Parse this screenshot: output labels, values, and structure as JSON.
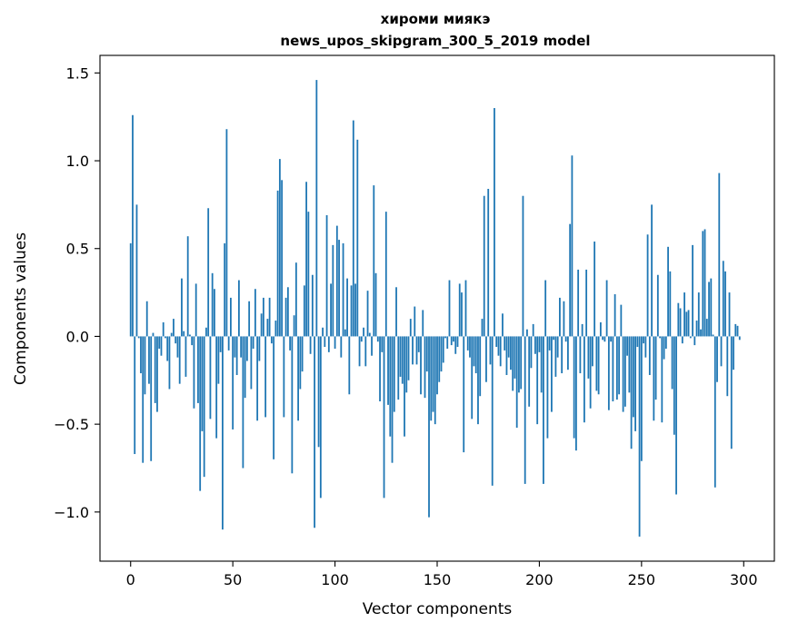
{
  "chart_data": {
    "type": "bar",
    "title": "хироми миякэ",
    "subtitle": "news_upos_skipgram_300_5_2019 model",
    "xlabel": "Vector components",
    "ylabel": "Components values",
    "xlim": [
      -15,
      315
    ],
    "ylim": [
      -1.28,
      1.6
    ],
    "xticks": [
      0,
      50,
      100,
      150,
      200,
      250,
      300
    ],
    "xtick_labels": [
      "0",
      "50",
      "100",
      "150",
      "200",
      "250",
      "300"
    ],
    "yticks": [
      -1.0,
      -0.5,
      0.0,
      0.5,
      1.0,
      1.5
    ],
    "ytick_labels": [
      "−1.0",
      "−0.5",
      "0.0",
      "0.5",
      "1.0",
      "1.5"
    ],
    "bar_color": "#1f77b4",
    "grid": false,
    "series": [
      {
        "values": [
          0.53,
          1.26,
          -0.67,
          0.75,
          -0.01,
          -0.21,
          -0.72,
          -0.33,
          0.2,
          -0.27,
          -0.71,
          0.02,
          -0.38,
          -0.43,
          -0.07,
          -0.11,
          0.08,
          -0.01,
          -0.14,
          -0.3,
          0.02,
          0.1,
          -0.04,
          -0.12,
          -0.27,
          0.33,
          0.03,
          -0.23,
          0.57,
          0.01,
          -0.05,
          -0.41,
          0.3,
          -0.38,
          -0.88,
          -0.54,
          -0.8,
          0.05,
          0.73,
          -0.47,
          0.36,
          0.27,
          -0.58,
          -0.27,
          -0.09,
          -1.1,
          0.53,
          1.18,
          -0.08,
          0.22,
          -0.53,
          -0.12,
          -0.22,
          0.32,
          -0.12,
          -0.75,
          -0.35,
          -0.14,
          0.2,
          -0.3,
          -0.07,
          0.27,
          -0.48,
          -0.14,
          0.13,
          0.22,
          -0.46,
          0.1,
          0.22,
          -0.04,
          -0.7,
          0.09,
          0.83,
          1.01,
          0.89,
          -0.46,
          0.22,
          0.28,
          -0.08,
          -0.78,
          0.12,
          0.42,
          -0.48,
          -0.3,
          -0.2,
          0.29,
          0.88,
          0.71,
          -0.1,
          0.35,
          -1.09,
          1.46,
          -0.63,
          -0.92,
          0.05,
          -0.06,
          0.69,
          -0.09,
          0.3,
          0.52,
          -0.07,
          0.63,
          0.55,
          -0.12,
          0.53,
          0.04,
          0.33,
          -0.33,
          0.29,
          1.23,
          0.3,
          1.12,
          -0.17,
          -0.03,
          0.05,
          -0.17,
          0.26,
          0.02,
          -0.11,
          0.86,
          0.36,
          -0.03,
          -0.37,
          -0.09,
          -0.92,
          0.71,
          -0.39,
          -0.57,
          -0.72,
          -0.43,
          0.28,
          -0.36,
          -0.23,
          -0.27,
          -0.57,
          -0.32,
          -0.25,
          0.1,
          -0.16,
          0.17,
          -0.16,
          -0.09,
          -0.33,
          0.15,
          -0.35,
          -0.2,
          -1.03,
          -0.48,
          -0.43,
          -0.5,
          -0.33,
          -0.26,
          -0.2,
          -0.15,
          -0.01,
          -0.07,
          0.32,
          -0.05,
          -0.03,
          -0.1,
          -0.06,
          0.3,
          0.25,
          -0.66,
          0.32,
          -0.08,
          -0.12,
          -0.47,
          -0.17,
          -0.21,
          -0.5,
          -0.34,
          0.1,
          0.8,
          -0.26,
          0.84,
          -0.16,
          -0.85,
          1.3,
          -0.06,
          -0.11,
          -0.17,
          0.13,
          -0.08,
          -0.22,
          -0.12,
          -0.19,
          -0.31,
          -0.24,
          -0.52,
          -0.32,
          -0.3,
          0.8,
          -0.84,
          0.04,
          -0.4,
          -0.18,
          0.07,
          -0.1,
          -0.5,
          -0.09,
          -0.32,
          -0.84,
          0.32,
          -0.58,
          -0.08,
          -0.43,
          -0.02,
          -0.23,
          -0.12,
          0.22,
          -0.21,
          0.2,
          -0.03,
          -0.19,
          0.64,
          1.03,
          -0.58,
          -0.65,
          0.38,
          -0.21,
          0.07,
          -0.49,
          0.38,
          -0.24,
          -0.41,
          -0.17,
          0.54,
          -0.31,
          -0.33,
          0.08,
          -0.02,
          -0.03,
          0.32,
          -0.42,
          -0.03,
          -0.37,
          0.24,
          -0.36,
          -0.33,
          0.18,
          -0.43,
          -0.4,
          -0.11,
          -0.32,
          -0.64,
          -0.46,
          -0.54,
          -0.06,
          -1.14,
          -0.71,
          -0.04,
          -0.12,
          0.58,
          -0.22,
          0.75,
          -0.48,
          -0.36,
          0.35,
          -0.01,
          -0.49,
          -0.13,
          -0.07,
          0.51,
          0.37,
          -0.3,
          -0.56,
          -0.9,
          0.19,
          0.16,
          -0.04,
          0.25,
          0.14,
          0.15,
          -0.01,
          0.52,
          -0.05,
          0.09,
          0.25,
          0.04,
          0.6,
          0.61,
          0.1,
          0.31,
          0.33,
          0.01,
          -0.86,
          -0.26,
          0.93,
          -0.17,
          0.43,
          0.37,
          -0.34,
          0.25,
          -0.64,
          -0.19,
          0.07,
          0.06,
          -0.02
        ]
      }
    ]
  }
}
